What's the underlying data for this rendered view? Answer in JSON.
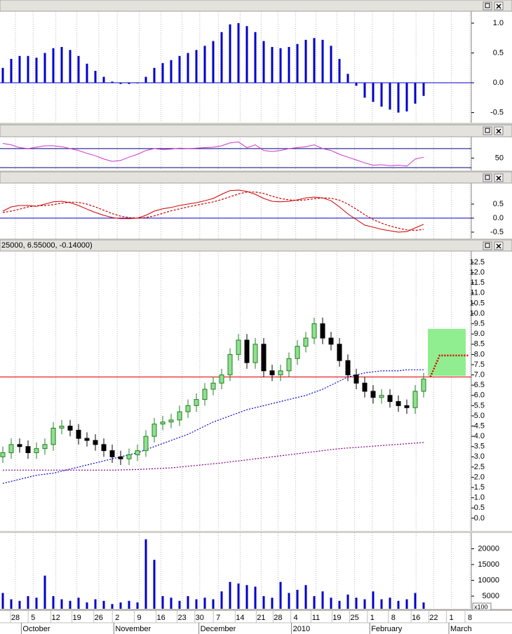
{
  "chart_data": [
    {
      "type": "bar",
      "color": "#0000cc",
      "ylim": [
        -0.67,
        1.2
      ],
      "yticks": [
        {
          "value": 1.0,
          "label": "1.0"
        },
        0.5,
        {
          "value": 0,
          "label": "0.0"
        },
        -0.5
      ],
      "levels": [
        0
      ],
      "level_color": "#0000cc",
      "values": [
        0.25,
        0.4,
        0.45,
        0.45,
        0.42,
        0.5,
        0.58,
        0.6,
        0.55,
        0.45,
        0.32,
        0.2,
        0.1,
        0.02,
        -0.02,
        -0.02,
        0,
        0.1,
        0.25,
        0.33,
        0.38,
        0.45,
        0.5,
        0.55,
        0.62,
        0.7,
        0.85,
        0.98,
        1.0,
        0.95,
        0.85,
        0.7,
        0.6,
        0.58,
        0.6,
        0.65,
        0.72,
        0.75,
        0.72,
        0.62,
        0.4,
        0.15,
        -0.05,
        -0.25,
        -0.32,
        -0.4,
        -0.45,
        -0.5,
        -0.48,
        -0.35,
        -0.22
      ]
    },
    {
      "type": "line",
      "ylim": [
        24,
        95
      ],
      "yticks": [
        50
      ],
      "levels": [
        70,
        30
      ],
      "level_color": "#000080",
      "series": [
        {
          "color": "#cc33cc",
          "values": [
            81,
            78,
            72,
            70,
            73,
            76,
            76,
            74,
            70,
            66,
            60,
            55,
            48,
            43,
            45,
            52,
            58,
            66,
            70,
            68,
            69,
            71,
            70,
            71,
            72,
            73,
            76,
            82,
            84,
            72,
            78,
            66,
            64,
            66,
            70,
            72,
            74,
            78,
            70,
            66,
            58,
            52,
            46,
            40,
            35,
            36,
            34,
            35,
            33,
            48,
            52
          ]
        }
      ]
    },
    {
      "type": "line",
      "ylim": [
        -0.725,
        1.25
      ],
      "yticks": [
        0.5,
        {
          "value": 0,
          "label": "0.0"
        },
        -0.5
      ],
      "levels": [
        0
      ],
      "level_color": "#0000cc",
      "series": [
        {
          "color": "#cc0000",
          "values": [
            0.25,
            0.4,
            0.45,
            0.45,
            0.42,
            0.5,
            0.58,
            0.6,
            0.55,
            0.45,
            0.32,
            0.2,
            0.1,
            0.02,
            -0.02,
            -0.02,
            0,
            0.1,
            0.25,
            0.33,
            0.38,
            0.45,
            0.5,
            0.55,
            0.62,
            0.7,
            0.85,
            0.98,
            1.0,
            0.95,
            0.85,
            0.7,
            0.6,
            0.58,
            0.6,
            0.65,
            0.72,
            0.75,
            0.72,
            0.62,
            0.4,
            0.15,
            -0.05,
            -0.25,
            -0.32,
            -0.4,
            -0.45,
            -0.5,
            -0.48,
            -0.35,
            -0.22
          ]
        },
        {
          "color": "#cc0000",
          "dash": true,
          "values": [
            0.2,
            0.25,
            0.32,
            0.4,
            0.44,
            0.45,
            0.48,
            0.53,
            0.57,
            0.56,
            0.5,
            0.4,
            0.28,
            0.16,
            0.07,
            0.02,
            0,
            0.02,
            0.08,
            0.17,
            0.26,
            0.33,
            0.4,
            0.46,
            0.52,
            0.58,
            0.66,
            0.76,
            0.86,
            0.93,
            0.93,
            0.88,
            0.78,
            0.7,
            0.65,
            0.63,
            0.65,
            0.69,
            0.72,
            0.71,
            0.64,
            0.5,
            0.32,
            0.12,
            -0.05,
            -0.18,
            -0.28,
            -0.36,
            -0.42,
            -0.44,
            -0.4
          ]
        }
      ]
    },
    {
      "type": "candlestick",
      "header": "25000, 6.55000, -0.14000)",
      "ylim": [
        -0.62,
        13.05
      ],
      "yticks": [
        12.5,
        {
          "value": 12,
          "label": "12.0"
        },
        11.5,
        {
          "value": 11,
          "label": "11.0"
        },
        10.5,
        {
          "value": 10,
          "label": "10.0"
        },
        9.5,
        {
          "value": 9,
          "label": "9.0"
        },
        8.5,
        {
          "value": 8,
          "label": "8.0"
        },
        7.5,
        {
          "value": 7,
          "label": "7.0"
        },
        6.5,
        {
          "value": 6,
          "label": "6.0"
        },
        5.5,
        {
          "value": 5,
          "label": "5.0"
        },
        4.5,
        {
          "value": 4,
          "label": "4.0"
        },
        3.5,
        {
          "value": 3,
          "label": "3.0"
        },
        2.5,
        {
          "value": 2,
          "label": "2.0"
        },
        1.5,
        {
          "value": 1,
          "label": "1.0"
        },
        0.5,
        {
          "value": 0,
          "label": "0.0"
        }
      ],
      "up_color": "#90e090",
      "up_edge": "#208020",
      "down_color": "#000000",
      "open": [
        3.0,
        3.2,
        3.6,
        3.5,
        3.2,
        3.4,
        3.6,
        4.4,
        4.5,
        4.3,
        3.9,
        3.8,
        3.6,
        3.3,
        3.0,
        2.9,
        3.1,
        3.3,
        4.0,
        4.6,
        4.7,
        4.8,
        5.2,
        5.5,
        5.8,
        6.3,
        6.6,
        7.0,
        8.0,
        8.7,
        7.6,
        8.5,
        7.2,
        7.0,
        7.2,
        7.8,
        8.4,
        8.8,
        9.5,
        8.8,
        8.5,
        7.7,
        7.0,
        6.6,
        6.2,
        5.9,
        6.0,
        5.7,
        5.5,
        5.4,
        6.2
      ],
      "high": [
        3.5,
        3.9,
        3.9,
        3.8,
        3.7,
        3.9,
        4.7,
        4.8,
        4.8,
        4.6,
        4.2,
        4.1,
        3.9,
        3.6,
        3.3,
        3.4,
        3.6,
        4.3,
        4.9,
        5.0,
        5.1,
        5.5,
        5.8,
        6.1,
        6.6,
        6.9,
        7.3,
        8.3,
        9.0,
        9.0,
        8.8,
        8.8,
        7.5,
        7.5,
        8.1,
        8.7,
        9.1,
        9.8,
        9.8,
        9.1,
        8.8,
        8.0,
        7.3,
        6.9,
        6.5,
        6.3,
        6.3,
        6.0,
        5.8,
        6.5,
        7.1
      ],
      "low": [
        2.7,
        2.9,
        3.2,
        2.9,
        2.9,
        3.1,
        3.3,
        4.1,
        4.0,
        3.6,
        3.5,
        3.3,
        3.0,
        2.7,
        2.6,
        2.6,
        2.8,
        3.0,
        3.7,
        4.3,
        4.4,
        4.5,
        4.9,
        5.2,
        5.5,
        6.0,
        6.3,
        6.7,
        7.7,
        7.3,
        7.3,
        6.9,
        6.7,
        6.7,
        6.9,
        7.5,
        8.1,
        8.5,
        8.5,
        8.2,
        7.4,
        6.7,
        6.3,
        5.9,
        5.6,
        5.6,
        5.4,
        5.2,
        5.1,
        5.1,
        5.9
      ],
      "close": [
        3.2,
        3.6,
        3.5,
        3.2,
        3.4,
        3.6,
        4.4,
        4.5,
        4.3,
        3.9,
        3.8,
        3.6,
        3.3,
        3.0,
        2.9,
        3.1,
        3.3,
        4.0,
        4.6,
        4.7,
        4.8,
        5.2,
        5.5,
        5.8,
        6.3,
        6.6,
        7.0,
        8.0,
        8.7,
        7.6,
        8.5,
        7.2,
        7.0,
        7.2,
        7.8,
        8.4,
        8.8,
        9.5,
        8.8,
        8.5,
        7.7,
        7.0,
        6.6,
        6.2,
        5.9,
        6.0,
        5.7,
        5.5,
        5.4,
        6.2,
        6.8
      ],
      "series": [
        {
          "color": "#0000cc",
          "dash": true,
          "values": [
            1.7,
            1.8,
            1.9,
            2.0,
            2.1,
            2.15,
            2.2,
            2.3,
            2.4,
            2.5,
            2.6,
            2.7,
            2.8,
            2.9,
            3.0,
            3.1,
            3.2,
            3.35,
            3.5,
            3.65,
            3.8,
            3.95,
            4.1,
            4.3,
            4.5,
            4.7,
            4.85,
            5.0,
            5.15,
            5.3,
            5.4,
            5.5,
            5.6,
            5.7,
            5.8,
            5.9,
            6.0,
            6.15,
            6.3,
            6.5,
            6.7,
            6.9,
            7.0,
            7.1,
            7.15,
            7.2,
            7.2,
            7.2,
            7.25,
            7.25,
            7.25
          ]
        },
        {
          "color": "#800080",
          "dash": true,
          "values": [
            2.35,
            2.35,
            2.35,
            2.35,
            2.35,
            2.35,
            2.35,
            2.35,
            2.35,
            2.35,
            2.35,
            2.35,
            2.35,
            2.35,
            2.36,
            2.37,
            2.38,
            2.4,
            2.42,
            2.44,
            2.46,
            2.5,
            2.54,
            2.58,
            2.62,
            2.66,
            2.7,
            2.75,
            2.8,
            2.85,
            2.9,
            2.95,
            3.0,
            3.05,
            3.1,
            3.15,
            3.2,
            3.25,
            3.3,
            3.35,
            3.4,
            3.43,
            3.46,
            3.49,
            3.52,
            3.55,
            3.58,
            3.61,
            3.64,
            3.67,
            3.7
          ]
        }
      ],
      "levels": [
        6.9
      ],
      "level_color": "#dd0000",
      "zone": {
        "x": [
          50.5,
          55
        ],
        "y": [
          6.95,
          9.25
        ],
        "color": "#90ee90"
      },
      "projection": {
        "x": [
          50.8,
          51.9,
          55.4
        ],
        "y": [
          6.9,
          7.95,
          7.95
        ],
        "color": "#dd0000"
      }
    },
    {
      "type": "bar",
      "color": "#0000cc",
      "ylim": [
        1000,
        25000
      ],
      "yticks": [
        20000,
        15000,
        10000,
        5000
      ],
      "unit_label": "x100",
      "values": [
        6000,
        4000,
        3500,
        5000,
        4500,
        11500,
        5000,
        4000,
        3500,
        4500,
        3000,
        4000,
        3500,
        2500,
        3000,
        3500,
        3000,
        23000,
        16500,
        5000,
        4500,
        3500,
        5000,
        4000,
        4500,
        4000,
        6500,
        9500,
        9000,
        8500,
        8000,
        5000,
        4500,
        9500,
        6000,
        7000,
        8500,
        5000,
        6500,
        4500,
        3500,
        5500,
        4500,
        4000,
        6500,
        4000,
        4500,
        3500,
        4000,
        6000,
        3000
      ],
      "xticks": [
        {
          "value": 1.5,
          "label": "28"
        },
        {
          "value": 3.6,
          "label": "5"
        },
        {
          "value": 6.3,
          "label": "12"
        },
        {
          "value": 8.8,
          "label": "19"
        },
        {
          "value": 11.4,
          "label": "26"
        },
        {
          "value": 13.6,
          "label": "2"
        },
        {
          "value": 16.2,
          "label": "9"
        },
        {
          "value": 18.8,
          "label": "16"
        },
        {
          "value": 21.3,
          "label": "23"
        },
        {
          "value": 23.4,
          "label": "30"
        },
        {
          "value": 25.6,
          "label": "7"
        },
        {
          "value": 28.2,
          "label": "14"
        },
        {
          "value": 30.7,
          "label": "21"
        },
        {
          "value": 32.7,
          "label": "28"
        },
        {
          "value": 34.8,
          "label": "4"
        },
        {
          "value": 37.2,
          "label": "11"
        },
        {
          "value": 39.7,
          "label": "19"
        },
        {
          "value": 41.8,
          "label": "25"
        },
        {
          "value": 43.9,
          "label": "1"
        },
        {
          "value": 46.4,
          "label": "8"
        },
        {
          "value": 49.1,
          "label": "16"
        },
        {
          "value": 51.2,
          "label": "22"
        },
        {
          "value": 53.3,
          "label": "1"
        },
        {
          "value": 55.5,
          "label": "8"
        }
      ],
      "months": [
        {
          "value": 2.2,
          "label": "October"
        },
        {
          "value": 13.2,
          "label": "November"
        },
        {
          "value": 23.3,
          "label": "December"
        },
        {
          "value": 34.3,
          "label": "2010"
        },
        {
          "value": 43.6,
          "label": "February"
        },
        {
          "value": 53.0,
          "label": "March"
        }
      ]
    }
  ]
}
